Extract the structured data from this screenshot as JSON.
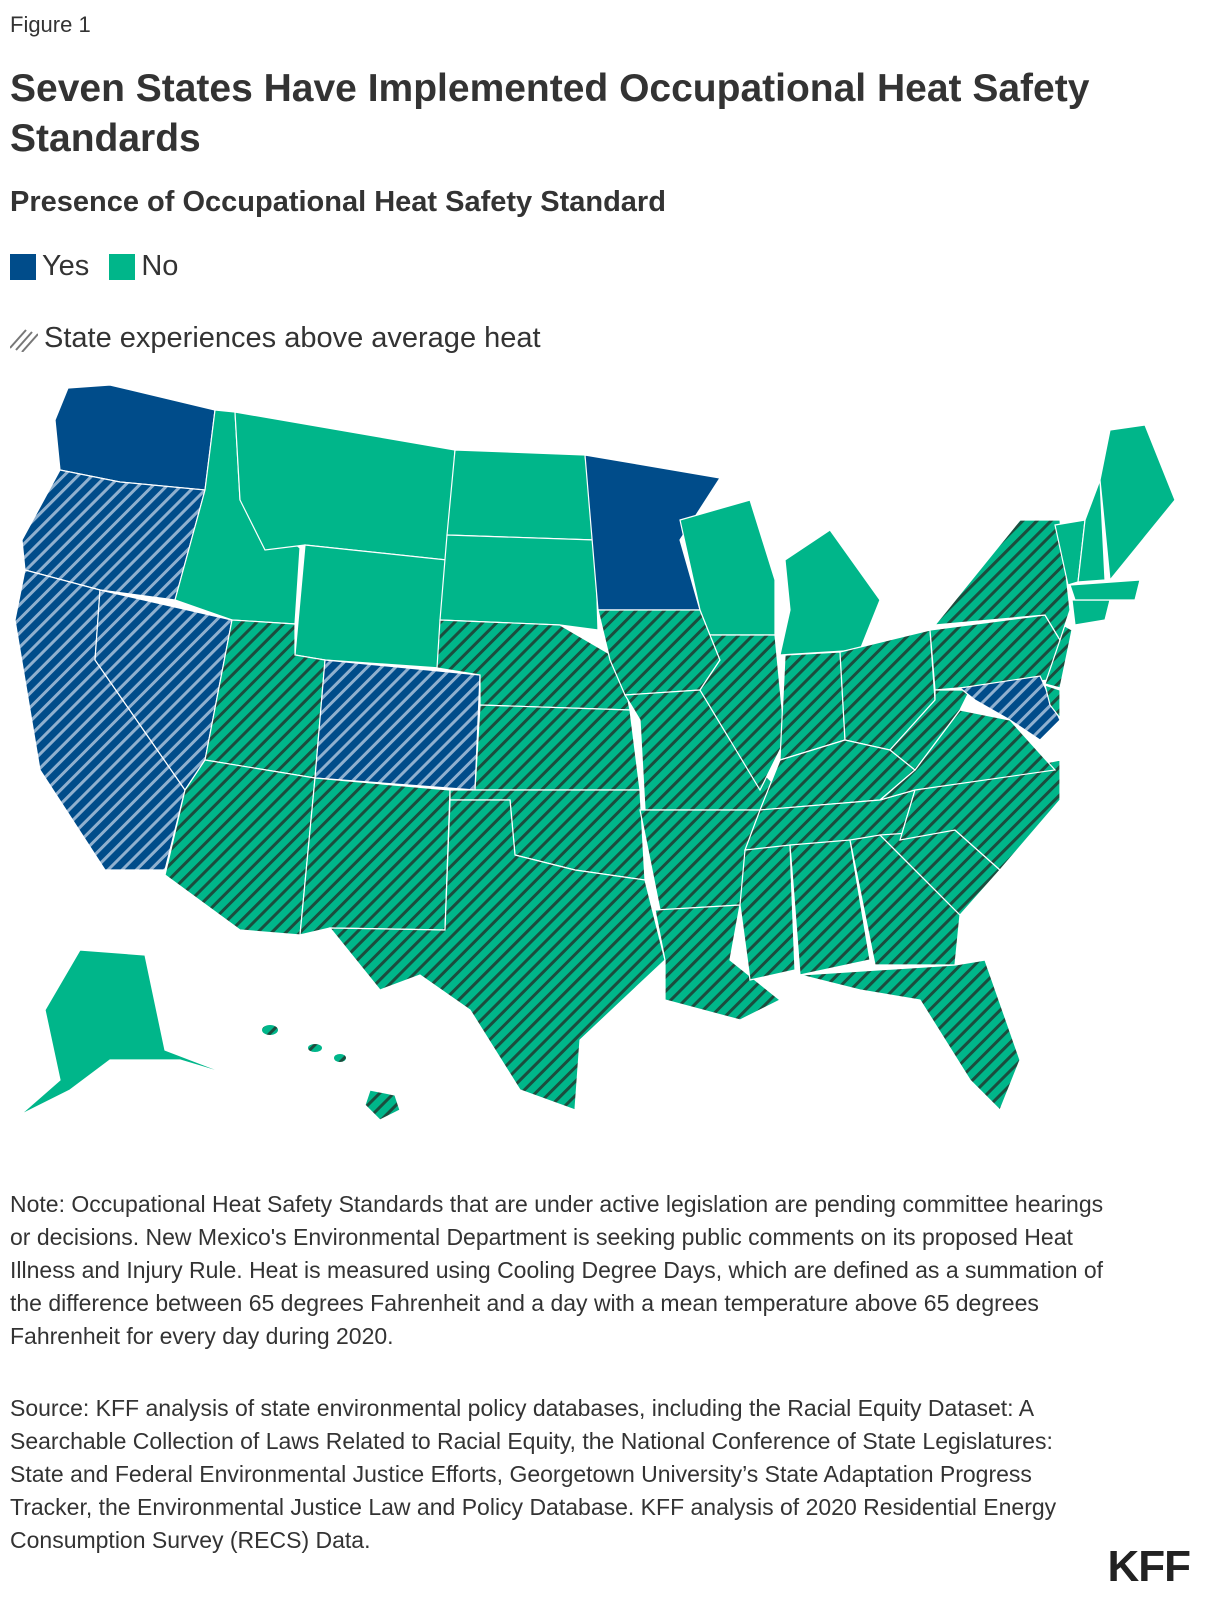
{
  "figure_label": "Figure 1",
  "title": "Seven States Have Implemented Occupational Heat Safety Standards",
  "subtitle": "Presence of Occupational Heat Safety Standard",
  "legend": {
    "yes": "Yes",
    "no": "No",
    "hatch": "State experiences above average heat"
  },
  "colors": {
    "yes": "#004c8a",
    "no": "#00b68a",
    "hatch_on_yes": "#8fb0cf",
    "hatch_on_no": "#1b4d3e"
  },
  "states": [
    {
      "id": "WA",
      "standard": "Yes",
      "heat": false
    },
    {
      "id": "OR",
      "standard": "Yes",
      "heat": true
    },
    {
      "id": "CA",
      "standard": "Yes",
      "heat": true
    },
    {
      "id": "NV",
      "standard": "Yes",
      "heat": true
    },
    {
      "id": "ID",
      "standard": "No",
      "heat": false
    },
    {
      "id": "MT",
      "standard": "No",
      "heat": false
    },
    {
      "id": "WY",
      "standard": "No",
      "heat": false
    },
    {
      "id": "UT",
      "standard": "No",
      "heat": true
    },
    {
      "id": "AZ",
      "standard": "No",
      "heat": true
    },
    {
      "id": "CO",
      "standard": "Yes",
      "heat": true
    },
    {
      "id": "NM",
      "standard": "No",
      "heat": true
    },
    {
      "id": "ND",
      "standard": "No",
      "heat": false
    },
    {
      "id": "SD",
      "standard": "No",
      "heat": false
    },
    {
      "id": "NE",
      "standard": "No",
      "heat": true
    },
    {
      "id": "KS",
      "standard": "No",
      "heat": true
    },
    {
      "id": "OK",
      "standard": "No",
      "heat": true
    },
    {
      "id": "TX",
      "standard": "No",
      "heat": true
    },
    {
      "id": "MN",
      "standard": "Yes",
      "heat": false
    },
    {
      "id": "IA",
      "standard": "No",
      "heat": true
    },
    {
      "id": "MO",
      "standard": "No",
      "heat": true
    },
    {
      "id": "AR",
      "standard": "No",
      "heat": true
    },
    {
      "id": "LA",
      "standard": "No",
      "heat": true
    },
    {
      "id": "WI",
      "standard": "No",
      "heat": false
    },
    {
      "id": "IL",
      "standard": "No",
      "heat": true
    },
    {
      "id": "MI",
      "standard": "No",
      "heat": false
    },
    {
      "id": "IN",
      "standard": "No",
      "heat": true
    },
    {
      "id": "OH",
      "standard": "No",
      "heat": true
    },
    {
      "id": "KY",
      "standard": "No",
      "heat": true
    },
    {
      "id": "TN",
      "standard": "No",
      "heat": true
    },
    {
      "id": "MS",
      "standard": "No",
      "heat": true
    },
    {
      "id": "AL",
      "standard": "No",
      "heat": true
    },
    {
      "id": "GA",
      "standard": "No",
      "heat": true
    },
    {
      "id": "FL",
      "standard": "No",
      "heat": true
    },
    {
      "id": "SC",
      "standard": "No",
      "heat": true
    },
    {
      "id": "NC",
      "standard": "No",
      "heat": true
    },
    {
      "id": "VA",
      "standard": "No",
      "heat": true
    },
    {
      "id": "WV",
      "standard": "No",
      "heat": true
    },
    {
      "id": "PA",
      "standard": "No",
      "heat": true
    },
    {
      "id": "MD",
      "standard": "Yes",
      "heat": true
    },
    {
      "id": "DE",
      "standard": "No",
      "heat": true
    },
    {
      "id": "NJ",
      "standard": "No",
      "heat": true
    },
    {
      "id": "NY",
      "standard": "No",
      "heat": true
    },
    {
      "id": "CT",
      "standard": "No",
      "heat": false
    },
    {
      "id": "MA",
      "standard": "No",
      "heat": false
    },
    {
      "id": "VT",
      "standard": "No",
      "heat": false
    },
    {
      "id": "NH",
      "standard": "No",
      "heat": false
    },
    {
      "id": "ME",
      "standard": "No",
      "heat": false
    },
    {
      "id": "AK",
      "standard": "No",
      "heat": false
    },
    {
      "id": "HI",
      "standard": "No",
      "heat": true
    }
  ],
  "note": "Note: Occupational Heat Safety Standards that are under active legislation are pending committee hearings or decisions. New Mexico's Environmental Department is seeking public comments on its proposed Heat Illness and Injury Rule. Heat is measured using Cooling Degree Days, which are defined as a summation of the difference between 65 degrees Fahrenheit and a day with a mean temperature above 65 degrees Fahrenheit for every day during 2020.",
  "source": "Source: KFF analysis of state environmental policy databases, including the Racial Equity Dataset: A Searchable Collection of Laws Related to Racial Equity, the National Conference of State Legislatures: State and Federal Environmental Justice Efforts, Georgetown University’s State Adaptation Progress Tracker, the Environmental Justice Law and Policy Database. KFF analysis of 2020 Residential Energy Consumption Survey (RECS) Data.",
  "logo": "KFF"
}
